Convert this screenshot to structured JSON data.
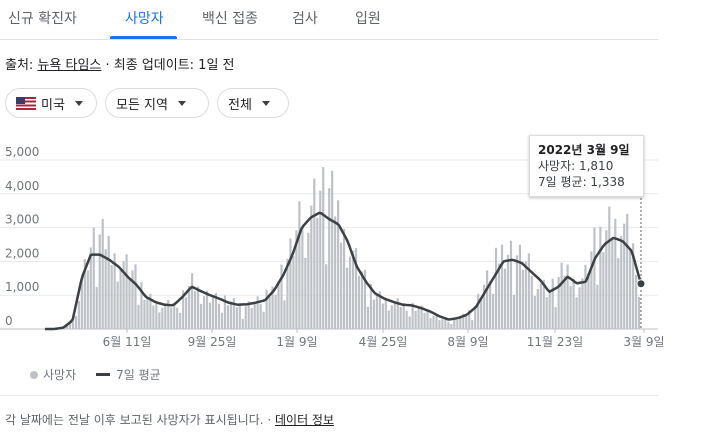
{
  "tabs": [
    "신규 확진자",
    "사망자",
    "백신 접종",
    "검사",
    "입원"
  ],
  "active_tab": 1,
  "source": {
    "prefix": "출처: ",
    "link": "뉴욕 타임스",
    "suffix": " · 최종 업데이트: 1일 전"
  },
  "filters": {
    "country": "미국",
    "region": "모든 지역",
    "scope": "전체"
  },
  "tooltip": {
    "date": "2022년 3월 9일",
    "deaths": "사망자: 1,810",
    "avg": "7일 평균: 1,338"
  },
  "legend": {
    "daily": "사망자",
    "avg": "7일 평균"
  },
  "footer": {
    "note": "각 날짜에는 전날 이후 보고된 사망자가 표시됩니다.",
    "sep": " · ",
    "link": "데이터 정보"
  },
  "colors": {
    "accent": "#1a73e8",
    "bars": "#bdc1c6",
    "line": "#3c4043"
  },
  "chart_data": {
    "type": "bar",
    "ylim": [
      0,
      5500
    ],
    "yticks": [
      "0",
      "1,000",
      "2,000",
      "3,000",
      "4,000",
      "5,000"
    ],
    "xticks": [
      "6월 11일",
      "9월 25일",
      "1월 9일",
      "4월 25일",
      "8월 9일",
      "11월 23일",
      "3월 9일"
    ],
    "series": [
      {
        "name": "사망자",
        "values": [
          0,
          0,
          50,
          300,
          1600,
          2500,
          2700,
          2500,
          2200,
          1800,
          1500,
          1000,
          800,
          700,
          700,
          1000,
          1400,
          1100,
          1000,
          900,
          800,
          700,
          700,
          800,
          900,
          1200,
          1800,
          2400,
          3300,
          3800,
          4100,
          4000,
          3500,
          2900,
          2000,
          1400,
          1100,
          900,
          800,
          700,
          700,
          600,
          500,
          350,
          250,
          300,
          400,
          700,
          1300,
          1800,
          2300,
          2300,
          2100,
          1800,
          1500,
          1100,
          1400,
          1800,
          1500,
          1500,
          2400,
          2900,
          3300,
          3200,
          2600,
          1810
        ]
      },
      {
        "name": "7일 평균",
        "values": [
          0,
          0,
          40,
          250,
          1500,
          2200,
          2200,
          2050,
          1850,
          1550,
          1300,
          950,
          800,
          720,
          700,
          950,
          1250,
          1120,
          1000,
          900,
          780,
          720,
          730,
          780,
          850,
          1150,
          1600,
          2200,
          3000,
          3300,
          3450,
          3250,
          3100,
          2600,
          1850,
          1400,
          1050,
          900,
          800,
          720,
          700,
          620,
          520,
          380,
          280,
          320,
          420,
          650,
          1100,
          1550,
          2000,
          2050,
          1950,
          1700,
          1450,
          1100,
          1250,
          1550,
          1350,
          1400,
          2100,
          2500,
          2700,
          2600,
          2300,
          1338
        ]
      }
    ]
  }
}
